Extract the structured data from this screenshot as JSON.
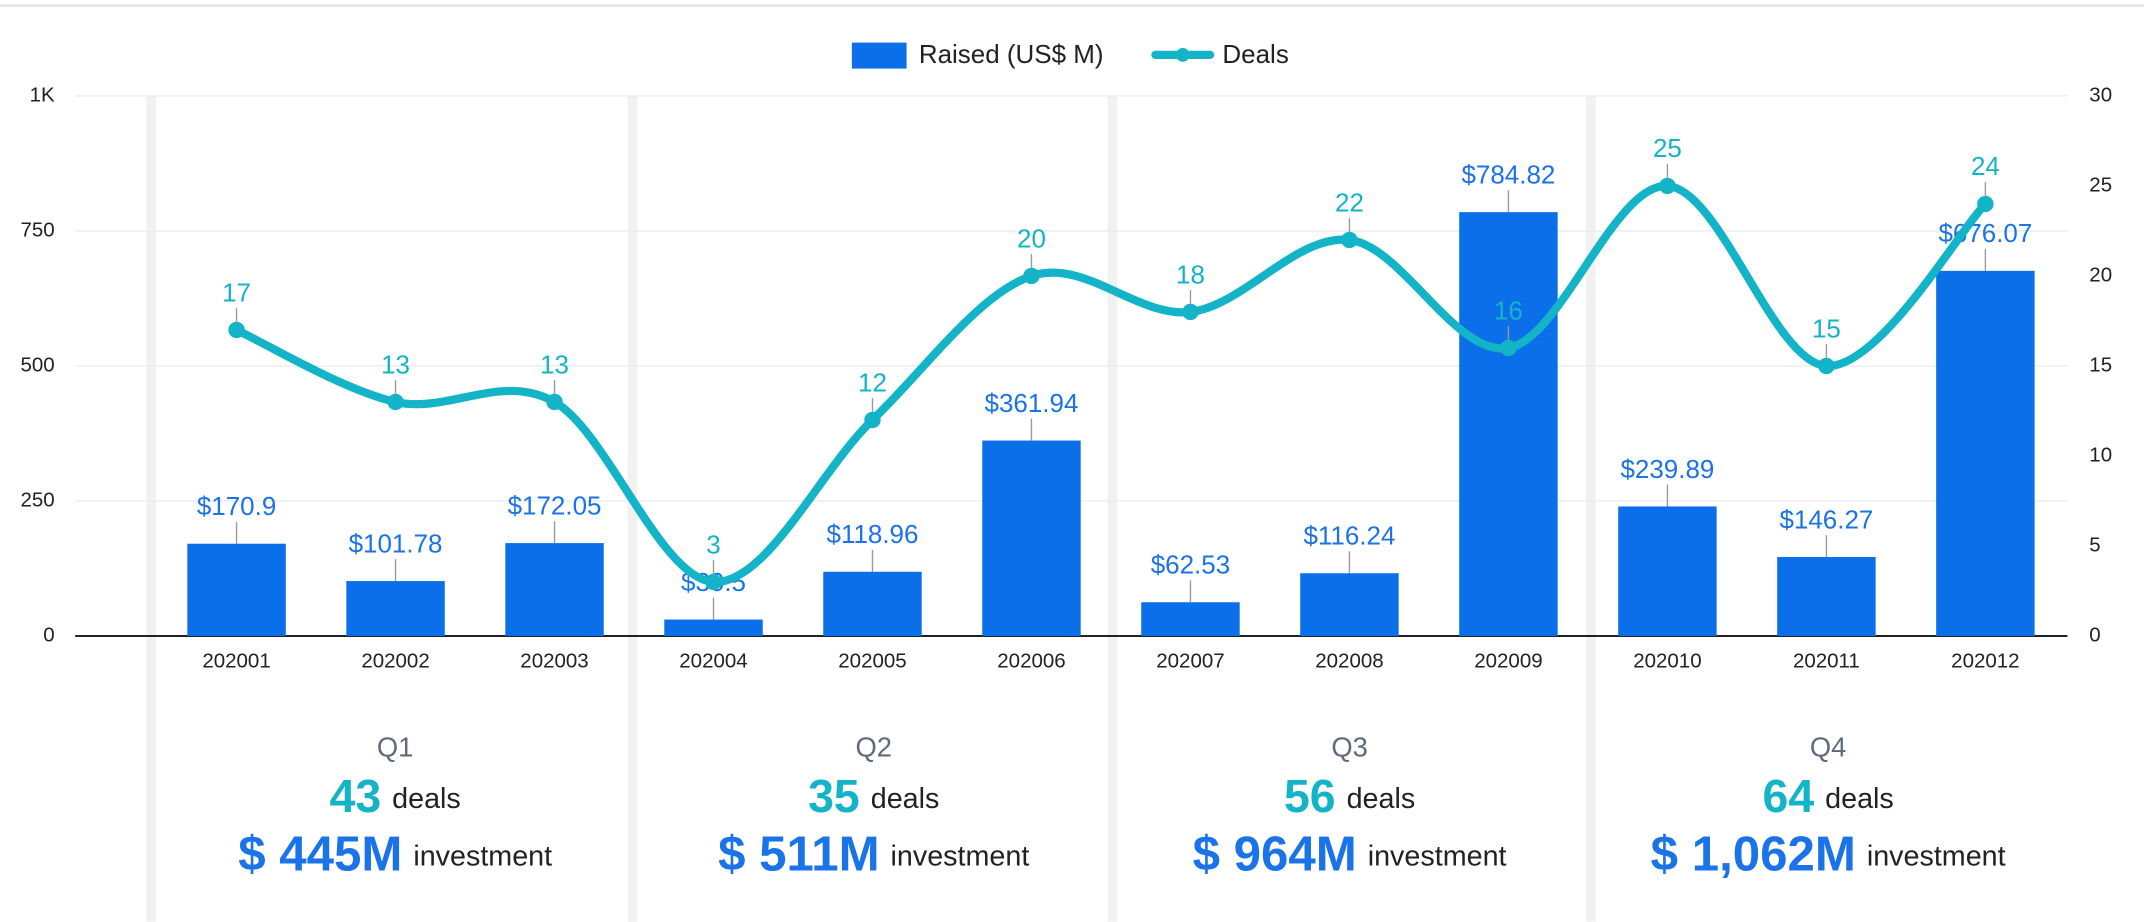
{
  "chart_data": {
    "type": "bar-line",
    "categories": [
      "202001",
      "202002",
      "202003",
      "202004",
      "202005",
      "202006",
      "202007",
      "202008",
      "202009",
      "202010",
      "202011",
      "202012"
    ],
    "series": [
      {
        "name": "Raised (US$ M)",
        "color": "#0b6fe9",
        "type": "bar",
        "values": [
          170.9,
          101.78,
          172.05,
          30.5,
          118.96,
          361.94,
          62.53,
          116.24,
          784.82,
          239.89,
          146.27,
          676.07
        ],
        "value_labels": [
          "$170.9",
          "$101.78",
          "$172.05",
          "$30.5",
          "$118.96",
          "$361.94",
          "$62.53",
          "$116.24",
          "$784.82",
          "$239.89",
          "$146.27",
          "$676.07"
        ]
      },
      {
        "name": "Deals",
        "color": "#14b4c8",
        "type": "line",
        "axis": "y2",
        "values": [
          17,
          13,
          13,
          3,
          12,
          20,
          18,
          22,
          16,
          25,
          15,
          24
        ]
      }
    ],
    "ylim": [
      0,
      1000
    ],
    "yticks": [
      0,
      250,
      500,
      750,
      {
        "value": 1000,
        "label": "1K"
      }
    ],
    "y2lim": [
      0,
      30
    ],
    "y2ticks": [
      0,
      5,
      10,
      15,
      20,
      25,
      30
    ],
    "grid": true,
    "legend": "top"
  },
  "quarters": [
    {
      "label": "Q1",
      "deals": 43,
      "deals_unit": "deals",
      "investment": "$ 445M",
      "investment_unit": "investment"
    },
    {
      "label": "Q2",
      "deals": 35,
      "deals_unit": "deals",
      "investment": "$ 511M",
      "investment_unit": "investment"
    },
    {
      "label": "Q3",
      "deals": 56,
      "deals_unit": "deals",
      "investment": "$ 964M",
      "investment_unit": "investment"
    },
    {
      "label": "Q4",
      "deals": 64,
      "deals_unit": "deals",
      "investment": "$ 1,062M",
      "investment_unit": "investment"
    }
  ]
}
